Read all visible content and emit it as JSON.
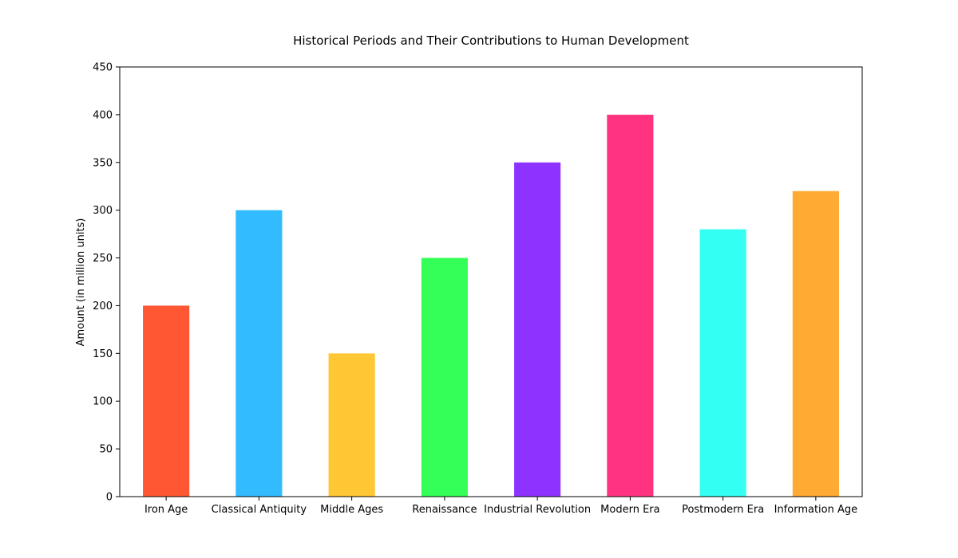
{
  "chart_data": {
    "type": "bar",
    "title": "Historical Periods and Their Contributions to Human Development",
    "xlabel": "",
    "ylabel": "Amount (in million units)",
    "ylim": [
      0,
      450
    ],
    "yticks": [
      0,
      50,
      100,
      150,
      200,
      250,
      300,
      350,
      400,
      450
    ],
    "grid": false,
    "categories": [
      "Iron Age",
      "Classical Antiquity",
      "Middle Ages",
      "Renaissance",
      "Industrial Revolution",
      "Modern Era",
      "Postmodern Era",
      "Information Age"
    ],
    "values": [
      200,
      300,
      150,
      250,
      350,
      400,
      280,
      320
    ],
    "colors": [
      "#ff5733",
      "#33bbff",
      "#ffc733",
      "#33ff57",
      "#8e33ff",
      "#ff3380",
      "#33fff3",
      "#ffaa33"
    ]
  }
}
